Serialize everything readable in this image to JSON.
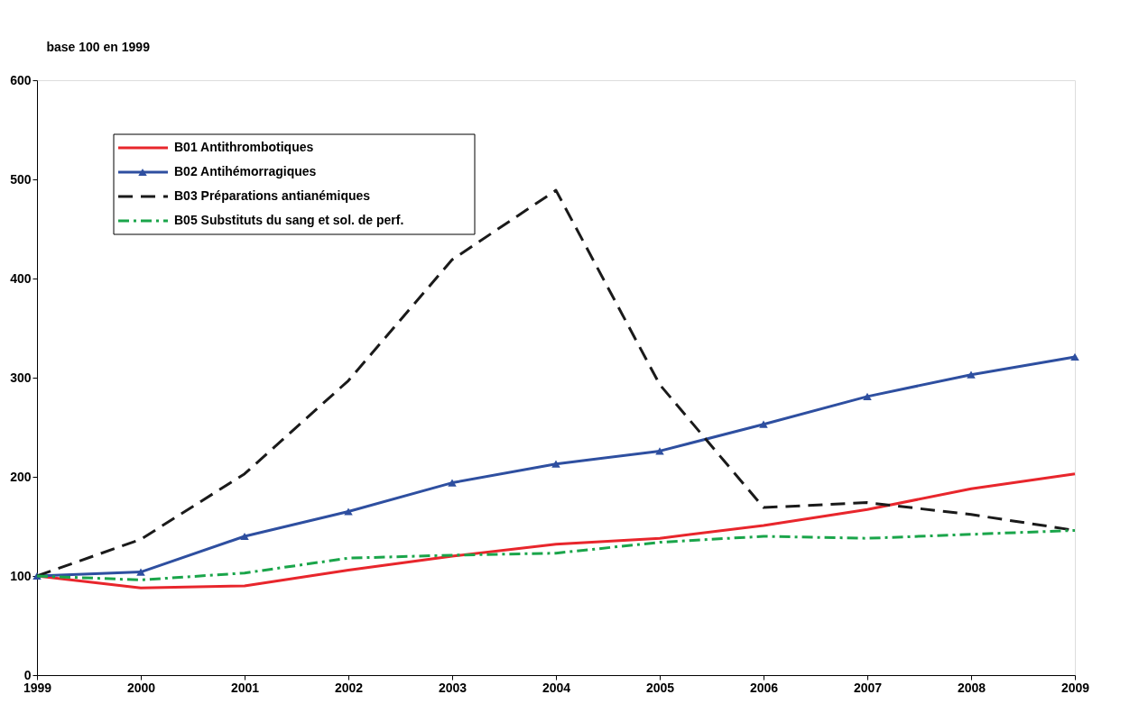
{
  "chart_data": {
    "type": "line",
    "ylabel": "base 100 en 1999",
    "categories": [
      "1999",
      "2000",
      "2001",
      "2002",
      "2003",
      "2004",
      "2005",
      "2006",
      "2007",
      "2008",
      "2009"
    ],
    "ylim": [
      0,
      600
    ],
    "yticks": [
      0,
      100,
      200,
      300,
      400,
      500,
      600
    ],
    "grid": false,
    "legend": "top left",
    "series": [
      {
        "name": "B01 Antithrombotiques",
        "color": "#e8262c",
        "line_style": "solid",
        "marker": "none",
        "values": [
          100,
          88,
          90,
          106,
          120,
          132,
          138,
          151,
          167,
          188,
          203
        ]
      },
      {
        "name": "B02 Antihémorragiques",
        "color": "#2e4fa0",
        "line_style": "solid",
        "marker": "triangle",
        "values": [
          100,
          104,
          140,
          165,
          194,
          213,
          226,
          253,
          281,
          303,
          321
        ]
      },
      {
        "name": "B03 Préparations antianémiques",
        "color": "#1a1a1a",
        "line_style": "dashed",
        "marker": "none",
        "values": [
          100,
          137,
          203,
          297,
          419,
          489,
          293,
          169,
          174,
          162,
          146
        ]
      },
      {
        "name": "B05 Substituts du sang et sol. de perf.",
        "color": "#1aa54a",
        "line_style": "dotted",
        "marker": "none",
        "values": [
          100,
          96,
          103,
          118,
          121,
          123,
          134,
          140,
          138,
          142,
          146
        ]
      }
    ]
  }
}
